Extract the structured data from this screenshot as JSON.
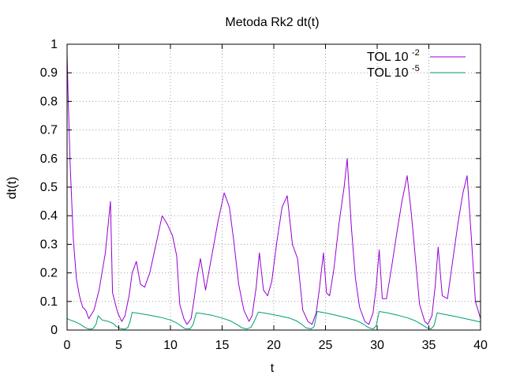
{
  "chart_data": {
    "type": "line",
    "title": "Metoda Rk2 dt(t)",
    "xlabel": "t",
    "ylabel": "dt(t)",
    "xlim": [
      0,
      40
    ],
    "ylim": [
      0,
      1
    ],
    "xticks": [
      "0",
      "5",
      "10",
      "15",
      "20",
      "25",
      "30",
      "35",
      "40"
    ],
    "yticks": [
      "0",
      "0.1",
      "0.2",
      "0.3",
      "0.4",
      "0.5",
      "0.6",
      "0.7",
      "0.8",
      "0.9",
      "1"
    ],
    "grid": true,
    "legend_position": "top-right",
    "series": [
      {
        "name": "TOL 10",
        "name_superscript": "-2",
        "color": "#9400d3",
        "x": [
          0,
          0.1,
          0.3,
          0.6,
          0.9,
          1.2,
          1.5,
          1.8,
          2.1,
          2.6,
          3.1,
          3.7,
          4.2,
          4.4,
          4.9,
          5.3,
          5.6,
          6.0,
          6.3,
          6.7,
          7.1,
          7.5,
          8.0,
          8.6,
          9.2,
          9.7,
          10.2,
          10.6,
          10.9,
          11.3,
          11.6,
          12.0,
          12.3,
          12.6,
          12.9,
          13.4,
          14.0,
          14.6,
          15.2,
          15.7,
          16.1,
          16.6,
          17.1,
          17.6,
          17.9,
          18.3,
          18.6,
          19.0,
          19.4,
          19.8,
          20.3,
          20.8,
          21.3,
          21.8,
          22.3,
          22.8,
          23.3,
          23.7,
          24.1,
          24.4,
          24.8,
          25.1,
          25.4,
          25.8,
          26.3,
          26.8,
          27.1,
          27.5,
          27.9,
          28.3,
          28.8,
          29.2,
          29.6,
          29.9,
          30.2,
          30.5,
          30.9,
          31.4,
          31.9,
          32.4,
          32.9,
          33.3,
          33.7,
          34.1,
          34.6,
          34.9,
          35.3,
          35.6,
          35.9,
          36.3,
          36.8,
          37.3,
          37.8,
          38.3,
          38.7,
          39.1,
          39.5,
          40.0
        ],
        "values": [
          0.97,
          0.82,
          0.58,
          0.32,
          0.18,
          0.12,
          0.08,
          0.07,
          0.04,
          0.07,
          0.14,
          0.27,
          0.45,
          0.13,
          0.06,
          0.03,
          0.05,
          0.12,
          0.2,
          0.24,
          0.16,
          0.15,
          0.2,
          0.3,
          0.4,
          0.37,
          0.33,
          0.26,
          0.09,
          0.04,
          0.02,
          0.04,
          0.11,
          0.19,
          0.25,
          0.14,
          0.26,
          0.38,
          0.48,
          0.43,
          0.32,
          0.16,
          0.07,
          0.03,
          0.05,
          0.15,
          0.27,
          0.14,
          0.12,
          0.17,
          0.31,
          0.43,
          0.47,
          0.3,
          0.25,
          0.07,
          0.03,
          0.02,
          0.06,
          0.14,
          0.27,
          0.13,
          0.12,
          0.21,
          0.37,
          0.5,
          0.6,
          0.36,
          0.18,
          0.08,
          0.03,
          0.02,
          0.06,
          0.15,
          0.28,
          0.11,
          0.11,
          0.22,
          0.34,
          0.45,
          0.54,
          0.41,
          0.25,
          0.09,
          0.03,
          0.02,
          0.05,
          0.15,
          0.29,
          0.12,
          0.11,
          0.24,
          0.37,
          0.48,
          0.54,
          0.33,
          0.1,
          0.04
        ]
      },
      {
        "name": "TOL 10",
        "name_superscript": "-5",
        "color": "#009e73",
        "x": [
          0,
          0.3,
          0.7,
          1.0,
          1.3,
          1.6,
          1.9,
          2.2,
          2.5,
          2.8,
          3.0,
          3.4,
          4.0,
          4.5,
          4.8,
          5.2,
          5.6,
          5.9,
          6.1,
          6.3,
          7.0,
          8.0,
          9.0,
          10.0,
          10.6,
          11.0,
          11.4,
          11.9,
          12.2,
          12.5,
          13.0,
          14.0,
          15.0,
          15.8,
          16.4,
          16.9,
          17.4,
          17.8,
          18.1,
          18.5,
          19.5,
          20.5,
          21.5,
          22.2,
          22.7,
          23.1,
          23.6,
          23.9,
          24.2,
          25.0,
          26.0,
          27.0,
          28.0,
          28.6,
          29.2,
          29.6,
          29.9,
          30.2,
          31.0,
          32.0,
          33.0,
          33.7,
          34.3,
          34.8,
          35.2,
          35.5,
          35.8,
          36.5,
          37.5,
          38.5,
          39.5,
          40.0
        ],
        "values": [
          0.04,
          0.035,
          0.03,
          0.025,
          0.02,
          0.012,
          0.006,
          0.003,
          0.005,
          0.02,
          0.05,
          0.035,
          0.03,
          0.022,
          0.012,
          0.005,
          0.003,
          0.01,
          0.03,
          0.062,
          0.058,
          0.052,
          0.045,
          0.035,
          0.025,
          0.015,
          0.005,
          0.004,
          0.02,
          0.06,
          0.058,
          0.052,
          0.042,
          0.032,
          0.02,
          0.008,
          0.004,
          0.01,
          0.03,
          0.063,
          0.057,
          0.05,
          0.042,
          0.032,
          0.02,
          0.008,
          0.004,
          0.012,
          0.065,
          0.06,
          0.052,
          0.043,
          0.033,
          0.022,
          0.008,
          0.004,
          0.015,
          0.065,
          0.06,
          0.052,
          0.042,
          0.032,
          0.02,
          0.008,
          0.004,
          0.015,
          0.06,
          0.055,
          0.048,
          0.04,
          0.032,
          0.028
        ]
      }
    ]
  }
}
